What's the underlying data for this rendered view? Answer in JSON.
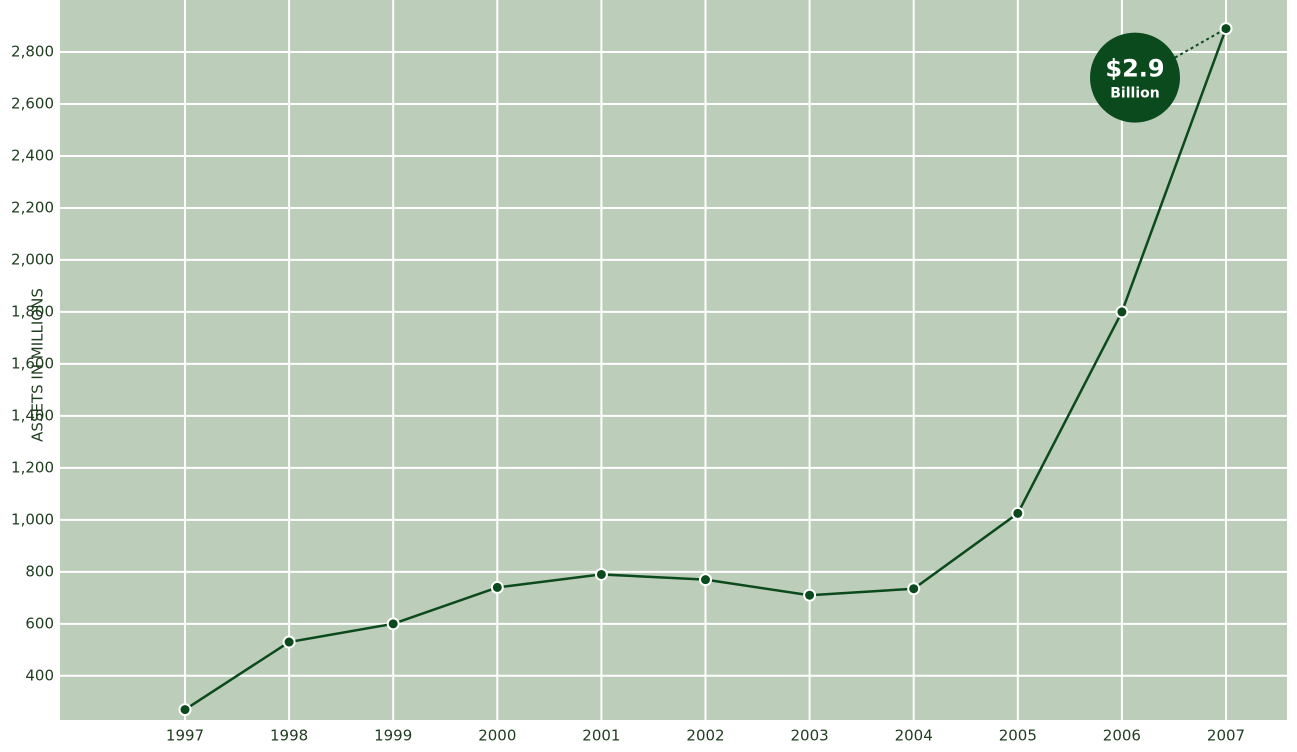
{
  "chart_data": {
    "type": "line",
    "y_label": "ASSETS IN MILLIONS",
    "categories": [
      "1997",
      "1998",
      "1999",
      "2000",
      "2001",
      "2002",
      "2003",
      "2004",
      "2005",
      "2006",
      "2007"
    ],
    "values": [
      270,
      530,
      600,
      740,
      790,
      770,
      710,
      735,
      1025,
      1800,
      2890
    ],
    "color": "#0b4a1c",
    "ylim": [
      230,
      3000
    ],
    "yticks": [
      400,
      600,
      800,
      {
        "value": 1000,
        "label": "1,000"
      },
      {
        "value": 1200,
        "label": "1,200"
      },
      {
        "value": 1400,
        "label": "1,400"
      },
      {
        "value": 1600,
        "label": "1,600"
      },
      {
        "value": 1800,
        "label": "1,800"
      },
      {
        "value": 2000,
        "label": "2,000"
      },
      {
        "value": 2200,
        "label": "2,200"
      },
      {
        "value": 2400,
        "label": "2,400"
      },
      {
        "value": 2600,
        "label": "2,600"
      },
      {
        "value": 2800,
        "label": "2,800"
      }
    ],
    "grid": true,
    "annotation": {
      "value": "$2.9",
      "unit": "Billion"
    }
  }
}
